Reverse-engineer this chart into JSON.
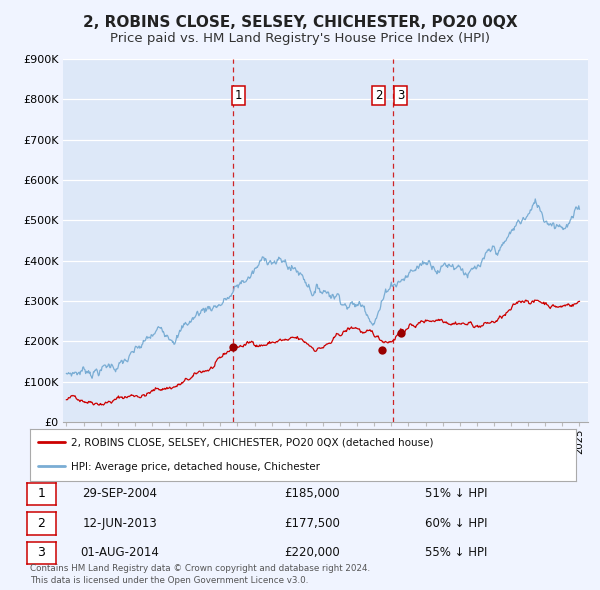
{
  "title": "2, ROBINS CLOSE, SELSEY, CHICHESTER, PO20 0QX",
  "subtitle": "Price paid vs. HM Land Registry's House Price Index (HPI)",
  "ylim": [
    0,
    900000
  ],
  "yticks": [
    0,
    100000,
    200000,
    300000,
    400000,
    500000,
    600000,
    700000,
    800000,
    900000
  ],
  "ytick_labels": [
    "£0",
    "£100K",
    "£200K",
    "£300K",
    "£400K",
    "£500K",
    "£600K",
    "£700K",
    "£800K",
    "£900K"
  ],
  "xlim_start": 1994.8,
  "xlim_end": 2025.5,
  "background_color": "#f0f4ff",
  "plot_bg_color": "#dde8f8",
  "grid_color": "#ffffff",
  "red_line_color": "#cc0000",
  "blue_line_color": "#7aadd4",
  "sale_color": "#990000",
  "sale_dates": [
    2004.747,
    2013.44,
    2014.585
  ],
  "sale_prices": [
    185000,
    177500,
    220000
  ],
  "vline_dates": [
    2004.747,
    2014.09
  ],
  "vline_color": "#cc0000",
  "legend_red_label": "2, ROBINS CLOSE, SELSEY, CHICHESTER, PO20 0QX (detached house)",
  "legend_blue_label": "HPI: Average price, detached house, Chichester",
  "table_rows": [
    [
      "1",
      "29-SEP-2004",
      "£185,000",
      "51% ↓ HPI"
    ],
    [
      "2",
      "12-JUN-2013",
      "£177,500",
      "60% ↓ HPI"
    ],
    [
      "3",
      "01-AUG-2014",
      "£220,000",
      "55% ↓ HPI"
    ]
  ],
  "footnote": "Contains HM Land Registry data © Crown copyright and database right 2024.\nThis data is licensed under the Open Government Licence v3.0.",
  "title_fontsize": 11,
  "subtitle_fontsize": 9.5
}
